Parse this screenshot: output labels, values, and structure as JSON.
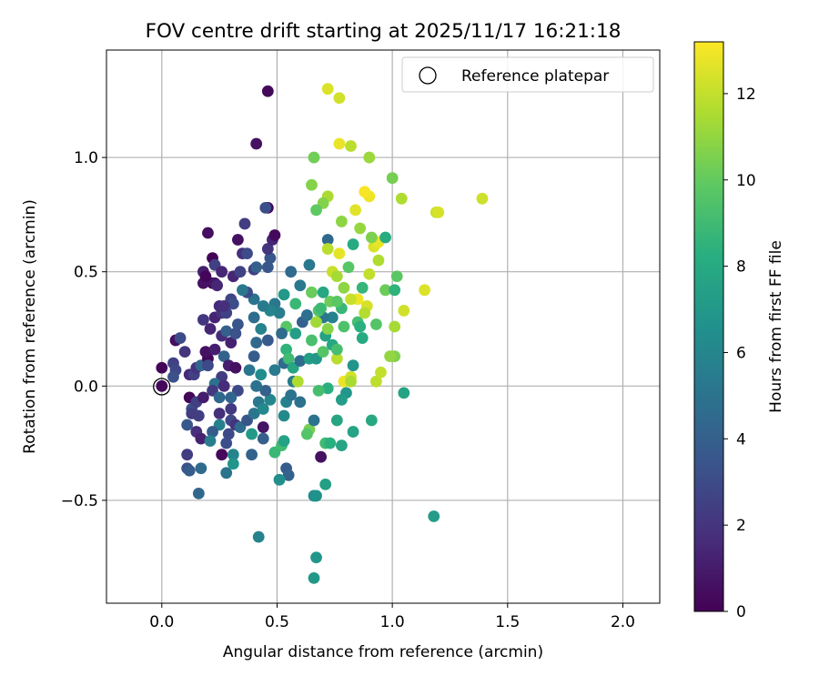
{
  "chart_data": {
    "type": "scatter",
    "title": "FOV centre drift starting at 2025/11/17 16:21:18",
    "xlabel": "Angular distance from reference (arcmin)",
    "ylabel": "Rotation from reference (arcmin)",
    "xlim": [
      -0.24,
      2.16
    ],
    "ylim": [
      -0.95,
      1.47
    ],
    "xticks": [
      0.0,
      0.5,
      1.0,
      1.5,
      2.0
    ],
    "xtick_labels": [
      "0.0",
      "0.5",
      "1.0",
      "1.5",
      "2.0"
    ],
    "yticks": [
      -0.5,
      0.0,
      0.5,
      1.0
    ],
    "ytick_labels": [
      "−0.5",
      "0.0",
      "0.5",
      "1.0"
    ],
    "grid": true,
    "legend": {
      "position": "top-right",
      "label": "Reference platepar"
    },
    "reference_point": {
      "x": 0.0,
      "y": 0.0
    },
    "colorbar": {
      "label": "Hours from first FF file",
      "range": [
        0,
        13.2
      ],
      "ticks": [
        0,
        2,
        4,
        6,
        8,
        10,
        12
      ],
      "tick_labels": [
        "0",
        "2",
        "4",
        "6",
        "8",
        "10",
        "12"
      ],
      "colormap": "viridis"
    },
    "points": [
      [
        0.0,
        0.08,
        0.2
      ],
      [
        0.0,
        0.0,
        0.3
      ],
      [
        0.06,
        0.2,
        0.5
      ],
      [
        0.05,
        0.1,
        2.6
      ],
      [
        0.06,
        0.07,
        2.8
      ],
      [
        0.05,
        0.04,
        3.2
      ],
      [
        0.08,
        0.21,
        3.0
      ],
      [
        0.1,
        0.15,
        2.0
      ],
      [
        0.12,
        0.05,
        1.5
      ],
      [
        0.12,
        -0.05,
        0.2
      ],
      [
        0.11,
        -0.17,
        3.6
      ],
      [
        0.13,
        -0.1,
        3.2
      ],
      [
        0.15,
        -0.07,
        2.5
      ],
      [
        0.13,
        -0.12,
        2.3
      ],
      [
        0.15,
        -0.2,
        1.8
      ],
      [
        0.17,
        -0.23,
        1.2
      ],
      [
        0.16,
        -0.13,
        2.4
      ],
      [
        0.18,
        -0.05,
        1.0
      ],
      [
        0.14,
        0.05,
        2.5
      ],
      [
        0.15,
        0.08,
        1.9
      ],
      [
        0.17,
        0.09,
        4.4
      ],
      [
        0.2,
        0.12,
        0.2
      ],
      [
        0.2,
        0.09,
        2.9
      ],
      [
        0.19,
        0.15,
        0.6
      ],
      [
        0.23,
        0.16,
        1.1
      ],
      [
        0.18,
        0.29,
        2.1
      ],
      [
        0.21,
        0.25,
        1.4
      ],
      [
        0.23,
        0.3,
        1.3
      ],
      [
        0.26,
        0.32,
        1.9
      ],
      [
        0.25,
        0.35,
        1.5
      ],
      [
        0.28,
        0.32,
        2.6
      ],
      [
        0.3,
        0.38,
        2.7
      ],
      [
        0.31,
        0.36,
        3.1
      ],
      [
        0.33,
        0.27,
        3.5
      ],
      [
        0.26,
        0.22,
        1.6
      ],
      [
        0.28,
        0.24,
        4.0
      ],
      [
        0.3,
        0.19,
        1.2
      ],
      [
        0.32,
        0.23,
        3.3
      ],
      [
        0.27,
        0.13,
        4.2
      ],
      [
        0.29,
        0.09,
        1.1
      ],
      [
        0.32,
        0.08,
        0.6
      ],
      [
        0.26,
        0.04,
        2.3
      ],
      [
        0.23,
        0.01,
        4.9
      ],
      [
        0.22,
        -0.02,
        2.2
      ],
      [
        0.25,
        -0.05,
        4.4
      ],
      [
        0.25,
        -0.12,
        1.8
      ],
      [
        0.3,
        -0.1,
        2.2
      ],
      [
        0.27,
        0.0,
        1.6
      ],
      [
        0.33,
        -0.02,
        2.9
      ],
      [
        0.3,
        -0.05,
        4.3
      ],
      [
        0.3,
        -0.15,
        2.8
      ],
      [
        0.32,
        -0.17,
        2.0
      ],
      [
        0.34,
        -0.18,
        4.6
      ],
      [
        0.37,
        -0.15,
        3.5
      ],
      [
        0.4,
        -0.12,
        5.1
      ],
      [
        0.42,
        -0.07,
        5.2
      ],
      [
        0.44,
        -0.1,
        6.2
      ],
      [
        0.25,
        -0.17,
        5.7
      ],
      [
        0.22,
        -0.2,
        3.8
      ],
      [
        0.21,
        -0.24,
        5.6
      ],
      [
        0.29,
        -0.21,
        2.9
      ],
      [
        0.28,
        -0.25,
        3.1
      ],
      [
        0.26,
        -0.3,
        0.3
      ],
      [
        0.31,
        -0.3,
        5.9
      ],
      [
        0.31,
        -0.34,
        6.8
      ],
      [
        0.28,
        -0.38,
        5.0
      ],
      [
        0.11,
        -0.3,
        2.3
      ],
      [
        0.11,
        -0.36,
        3.2
      ],
      [
        0.12,
        -0.37,
        3.8
      ],
      [
        0.17,
        -0.36,
        4.6
      ],
      [
        0.16,
        -0.47,
        4.4
      ],
      [
        0.39,
        -0.3,
        4.2
      ],
      [
        0.44,
        -0.18,
        0.7
      ],
      [
        0.44,
        -0.23,
        4.0
      ],
      [
        0.39,
        -0.21,
        7.1
      ],
      [
        0.42,
        -0.66,
        5.8
      ],
      [
        0.49,
        -0.29,
        8.8
      ],
      [
        0.52,
        -0.26,
        9.0
      ],
      [
        0.53,
        -0.24,
        7.5
      ],
      [
        0.54,
        -0.36,
        3.8
      ],
      [
        0.55,
        -0.39,
        4.2
      ],
      [
        0.51,
        -0.41,
        6.5
      ],
      [
        0.66,
        -0.48,
        6.3
      ],
      [
        0.67,
        -0.48,
        6.6
      ],
      [
        0.66,
        -0.84,
        7.0
      ],
      [
        0.67,
        -0.75,
        6.9
      ],
      [
        0.69,
        -0.31,
        0.6
      ],
      [
        0.71,
        -0.25,
        9.0
      ],
      [
        0.73,
        -0.25,
        8.3
      ],
      [
        0.71,
        -0.43,
        7.4
      ],
      [
        0.78,
        -0.26,
        7.7
      ],
      [
        0.8,
        -0.03,
        6.9
      ],
      [
        0.78,
        -0.06,
        7.2
      ],
      [
        0.83,
        -0.2,
        7.6
      ],
      [
        0.91,
        -0.15,
        7.9
      ],
      [
        0.76,
        -0.15,
        7.7
      ],
      [
        0.72,
        -0.01,
        8.3
      ],
      [
        0.68,
        -0.02,
        9.2
      ],
      [
        0.64,
        -0.19,
        10.4
      ],
      [
        0.63,
        -0.21,
        9.6
      ],
      [
        0.66,
        -0.15,
        5.0
      ],
      [
        0.6,
        -0.07,
        4.9
      ],
      [
        0.53,
        -0.13,
        6.2
      ],
      [
        0.54,
        -0.07,
        5.7
      ],
      [
        0.56,
        -0.04,
        5.0
      ],
      [
        0.57,
        0.02,
        5.5
      ],
      [
        0.47,
        -0.06,
        6.0
      ],
      [
        0.45,
        -0.02,
        4.1
      ],
      [
        0.41,
        0.0,
        4.9
      ],
      [
        0.38,
        0.07,
        5.1
      ],
      [
        0.4,
        0.13,
        3.8
      ],
      [
        0.41,
        0.19,
        4.5
      ],
      [
        0.46,
        0.2,
        3.7
      ],
      [
        0.43,
        0.05,
        6.4
      ],
      [
        0.49,
        0.07,
        5.4
      ],
      [
        0.53,
        0.1,
        4.6
      ],
      [
        0.54,
        0.16,
        8.5
      ],
      [
        0.55,
        0.12,
        9.0
      ],
      [
        0.57,
        0.08,
        7.8
      ],
      [
        0.6,
        0.11,
        4.7
      ],
      [
        0.59,
        0.02,
        11.6
      ],
      [
        0.54,
        0.26,
        9.7
      ],
      [
        0.52,
        0.23,
        4.6
      ],
      [
        0.58,
        0.23,
        7.4
      ],
      [
        0.61,
        0.28,
        4.1
      ],
      [
        0.63,
        0.31,
        4.8
      ],
      [
        0.65,
        0.2,
        9.3
      ],
      [
        0.64,
        0.12,
        7.3
      ],
      [
        0.67,
        0.12,
        7.0
      ],
      [
        0.7,
        0.15,
        9.6
      ],
      [
        0.71,
        0.22,
        7.5
      ],
      [
        0.74,
        0.18,
        7.8
      ],
      [
        0.76,
        0.12,
        11.8
      ],
      [
        0.76,
        0.16,
        9.2
      ],
      [
        0.79,
        0.02,
        12.8
      ],
      [
        0.82,
        0.04,
        12.3
      ],
      [
        0.82,
        0.02,
        11.5
      ],
      [
        0.83,
        0.09,
        6.8
      ],
      [
        0.87,
        0.21,
        8.0
      ],
      [
        0.85,
        0.28,
        9.2
      ],
      [
        0.86,
        0.26,
        8.3
      ],
      [
        0.89,
        0.35,
        12.4
      ],
      [
        0.88,
        0.32,
        11.7
      ],
      [
        0.85,
        0.38,
        12.9
      ],
      [
        0.87,
        0.43,
        8.7
      ],
      [
        0.82,
        0.38,
        12.1
      ],
      [
        0.79,
        0.43,
        10.9
      ],
      [
        0.78,
        0.34,
        8.8
      ],
      [
        0.74,
        0.3,
        5.8
      ],
      [
        0.7,
        0.3,
        5.2
      ],
      [
        0.72,
        0.25,
        10.8
      ],
      [
        0.79,
        0.26,
        9.4
      ],
      [
        0.73,
        0.37,
        10.2
      ],
      [
        0.76,
        0.37,
        9.8
      ],
      [
        0.68,
        0.33,
        9.5
      ],
      [
        0.67,
        0.28,
        11.3
      ],
      [
        0.69,
        0.34,
        8.9
      ],
      [
        0.65,
        0.41,
        10.1
      ],
      [
        0.7,
        0.41,
        7.9
      ],
      [
        0.58,
        0.36,
        8.8
      ],
      [
        0.53,
        0.4,
        7.0
      ],
      [
        0.49,
        0.36,
        5.2
      ],
      [
        0.51,
        0.32,
        5.6
      ],
      [
        0.47,
        0.33,
        5.9
      ],
      [
        0.44,
        0.35,
        5.4
      ],
      [
        0.43,
        0.25,
        5.8
      ],
      [
        0.4,
        0.3,
        4.7
      ],
      [
        0.4,
        0.38,
        5.0
      ],
      [
        0.37,
        0.41,
        3.0
      ],
      [
        0.35,
        0.42,
        5.2
      ],
      [
        0.31,
        0.48,
        1.4
      ],
      [
        0.27,
        0.35,
        1.8
      ],
      [
        0.22,
        0.45,
        0.3
      ],
      [
        0.18,
        0.45,
        0.6
      ],
      [
        0.18,
        0.5,
        1.1
      ],
      [
        0.19,
        0.48,
        0.2
      ],
      [
        0.23,
        0.45,
        0.8
      ],
      [
        0.24,
        0.44,
        1.4
      ],
      [
        0.2,
        0.67,
        0.5
      ],
      [
        0.22,
        0.56,
        0.1
      ],
      [
        0.23,
        0.53,
        2.5
      ],
      [
        0.26,
        0.5,
        1.4
      ],
      [
        0.34,
        0.5,
        2.6
      ],
      [
        0.35,
        0.58,
        1.8
      ],
      [
        0.37,
        0.58,
        3.0
      ],
      [
        0.33,
        0.64,
        0.6
      ],
      [
        0.36,
        0.71,
        2.3
      ],
      [
        0.4,
        0.51,
        2.3
      ],
      [
        0.41,
        0.52,
        4.0
      ],
      [
        0.46,
        0.52,
        3.6
      ],
      [
        0.47,
        0.56,
        3.5
      ],
      [
        0.46,
        0.6,
        2.0
      ],
      [
        0.48,
        0.64,
        1.4
      ],
      [
        0.49,
        0.66,
        0.3
      ],
      [
        0.46,
        0.78,
        0.2
      ],
      [
        0.45,
        0.78,
        3.1
      ],
      [
        0.56,
        0.5,
        4.6
      ],
      [
        0.6,
        0.44,
        5.3
      ],
      [
        0.64,
        0.53,
        5.2
      ],
      [
        0.72,
        0.64,
        4.5
      ],
      [
        0.74,
        0.5,
        12.1
      ],
      [
        0.72,
        0.6,
        11.8
      ],
      [
        0.77,
        0.58,
        12.7
      ],
      [
        0.76,
        0.48,
        11.4
      ],
      [
        0.81,
        0.52,
        9.7
      ],
      [
        0.83,
        0.62,
        8.0
      ],
      [
        0.86,
        0.69,
        11.1
      ],
      [
        0.9,
        0.49,
        12.0
      ],
      [
        0.92,
        0.61,
        12.5
      ],
      [
        0.94,
        0.63,
        12.8
      ],
      [
        0.94,
        0.55,
        11.6
      ],
      [
        0.91,
        0.65,
        10.5
      ],
      [
        0.97,
        0.65,
        8.1
      ],
      [
        0.93,
        0.27,
        9.6
      ],
      [
        0.97,
        0.42,
        10.2
      ],
      [
        1.01,
        0.42,
        8.5
      ],
      [
        1.02,
        0.48,
        9.8
      ],
      [
        1.01,
        0.26,
        11.4
      ],
      [
        1.01,
        0.13,
        10.6
      ],
      [
        0.99,
        0.13,
        11.0
      ],
      [
        0.93,
        0.02,
        11.9
      ],
      [
        0.95,
        0.06,
        12.0
      ],
      [
        1.05,
        -0.03,
        7.6
      ],
      [
        1.05,
        0.33,
        12.3
      ],
      [
        1.14,
        0.42,
        12.5
      ],
      [
        1.04,
        0.82,
        11.6
      ],
      [
        1.0,
        0.91,
        10.4
      ],
      [
        0.9,
        0.83,
        12.9
      ],
      [
        0.88,
        0.85,
        13.1
      ],
      [
        0.84,
        0.77,
        12.6
      ],
      [
        0.78,
        0.72,
        10.9
      ],
      [
        0.72,
        0.83,
        11.5
      ],
      [
        0.7,
        0.8,
        10.7
      ],
      [
        0.67,
        0.77,
        9.9
      ],
      [
        0.65,
        0.88,
        10.7
      ],
      [
        0.66,
        1.0,
        10.3
      ],
      [
        0.77,
        1.06,
        12.8
      ],
      [
        0.82,
        1.05,
        11.8
      ],
      [
        0.9,
        1.0,
        11.2
      ],
      [
        0.72,
        1.3,
        12.5
      ],
      [
        0.77,
        1.26,
        12.3
      ],
      [
        0.46,
        1.29,
        0.3
      ],
      [
        0.41,
        1.06,
        0.6
      ],
      [
        1.19,
        0.76,
        12.1
      ],
      [
        1.2,
        0.76,
        12.4
      ],
      [
        1.39,
        0.82,
        12.2
      ],
      [
        1.18,
        -0.57,
        7.2
      ]
    ]
  }
}
